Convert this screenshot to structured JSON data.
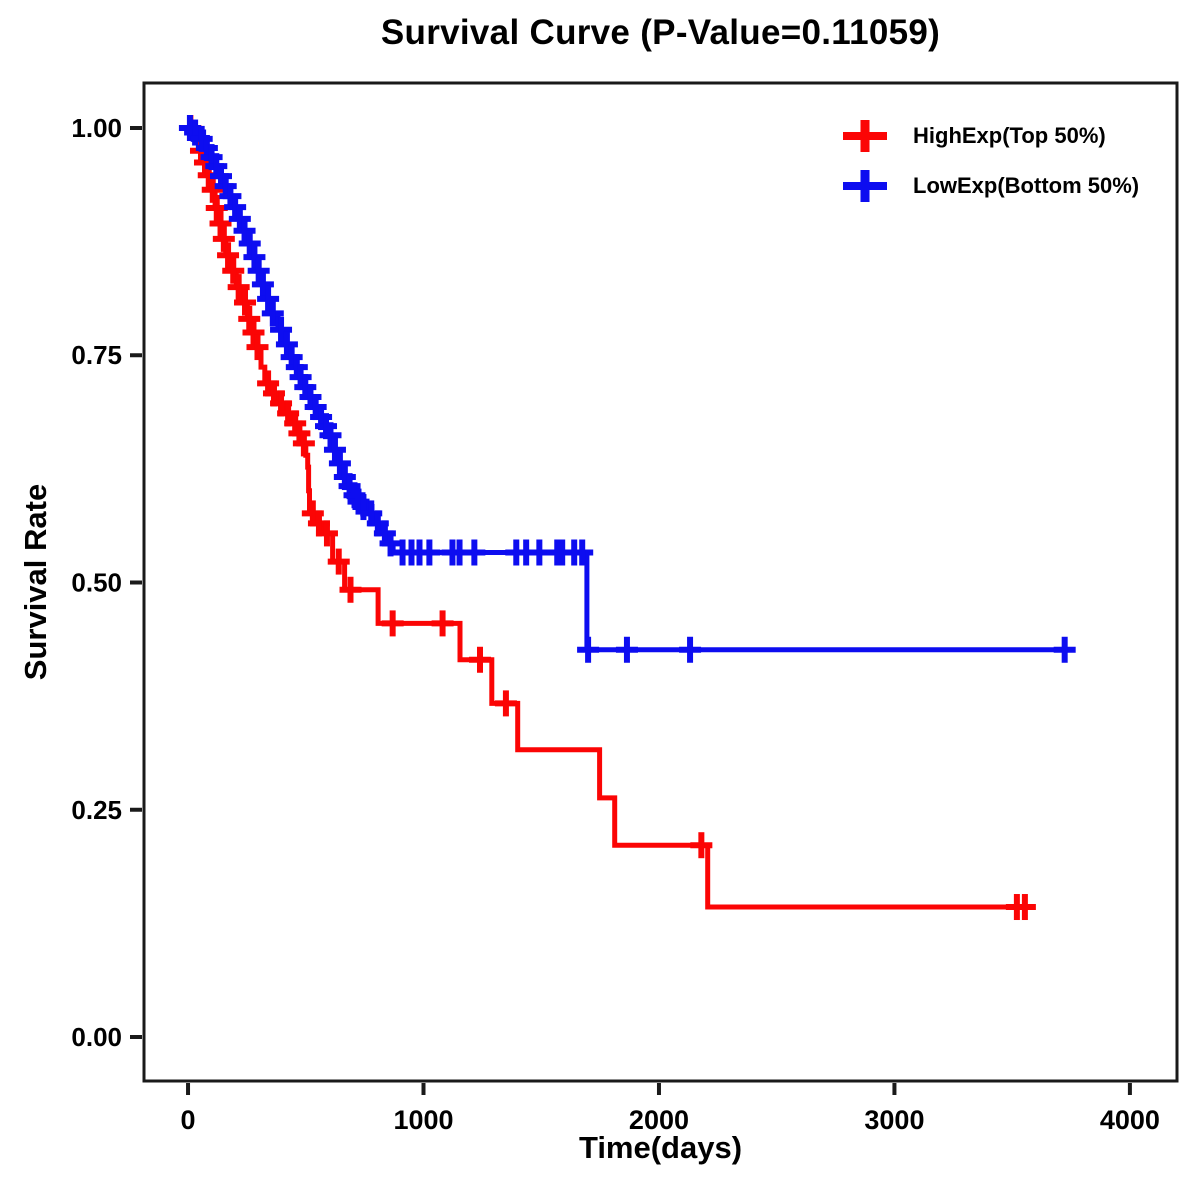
{
  "title": "Survival Curve (P-Value=0.11059)",
  "axes": {
    "x": {
      "label": "Time(days)",
      "tick_labels": [
        "0",
        "1000",
        "2000",
        "3000",
        "4000"
      ],
      "tick_values": [
        0,
        1000,
        2000,
        3000,
        4000
      ]
    },
    "y": {
      "label": "Survival Rate",
      "tick_labels": [
        "0.00",
        "0.25",
        "0.50",
        "0.75",
        "1.00"
      ],
      "tick_values": [
        0,
        0.25,
        0.5,
        0.75,
        1
      ]
    }
  },
  "colors": {
    "high": "#fb0505",
    "low": "#0d0df0",
    "axis": "#1a1a1a",
    "text": "#000000",
    "background": "#ffffff"
  },
  "legend": [
    {
      "label": "HighExp(Top 50%)",
      "color": "#fb0505"
    },
    {
      "label": "LowExp(Bottom 50%)",
      "color": "#0d0df0"
    }
  ],
  "chart_data": {
    "type": "line",
    "subtype": "kaplan-meier-step",
    "title": "Survival Curve (P-Value=0.11059)",
    "xlabel": "Time(days)",
    "ylabel": "Survival Rate",
    "xlim": [
      -187,
      4200
    ],
    "ylim": [
      -0.0484,
      1.0495
    ],
    "grid": false,
    "legend_position": "top-right-inside",
    "series": [
      {
        "name": "HighExp(Top 50%)",
        "color": "#fb0505",
        "end_time": 3575,
        "steps": [
          [
            0,
            1.0
          ],
          [
            18,
            0.993
          ],
          [
            35,
            0.985
          ],
          [
            50,
            0.975
          ],
          [
            65,
            0.962
          ],
          [
            80,
            0.948
          ],
          [
            95,
            0.932
          ],
          [
            115,
            0.912
          ],
          [
            130,
            0.895
          ],
          [
            145,
            0.878
          ],
          [
            160,
            0.86
          ],
          [
            180,
            0.843
          ],
          [
            205,
            0.825
          ],
          [
            230,
            0.808
          ],
          [
            252,
            0.79
          ],
          [
            270,
            0.775
          ],
          [
            285,
            0.759
          ],
          [
            310,
            0.737
          ],
          [
            326,
            0.719
          ],
          [
            355,
            0.708
          ],
          [
            377,
            0.697
          ],
          [
            410,
            0.686
          ],
          [
            445,
            0.675
          ],
          [
            465,
            0.664
          ],
          [
            483,
            0.653
          ],
          [
            500,
            0.64
          ],
          [
            508,
            0.627
          ],
          [
            512,
            0.601
          ],
          [
            516,
            0.576
          ],
          [
            545,
            0.565
          ],
          [
            568,
            0.554
          ],
          [
            614,
            0.523
          ],
          [
            665,
            0.492
          ],
          [
            807,
            0.455
          ],
          [
            1155,
            0.415
          ],
          [
            1290,
            0.367
          ],
          [
            1400,
            0.316
          ],
          [
            1748,
            0.263
          ],
          [
            1812,
            0.211
          ],
          [
            2207,
            0.143
          ]
        ],
        "censors": [
          [
            10,
            1.0
          ],
          [
            55,
            0.975
          ],
          [
            72,
            0.962
          ],
          [
            88,
            0.948
          ],
          [
            105,
            0.932
          ],
          [
            122,
            0.912
          ],
          [
            138,
            0.895
          ],
          [
            152,
            0.878
          ],
          [
            170,
            0.86
          ],
          [
            192,
            0.843
          ],
          [
            215,
            0.825
          ],
          [
            242,
            0.808
          ],
          [
            260,
            0.79
          ],
          [
            278,
            0.775
          ],
          [
            295,
            0.759
          ],
          [
            340,
            0.719
          ],
          [
            365,
            0.708
          ],
          [
            395,
            0.697
          ],
          [
            425,
            0.686
          ],
          [
            455,
            0.675
          ],
          [
            473,
            0.664
          ],
          [
            492,
            0.653
          ],
          [
            530,
            0.576
          ],
          [
            556,
            0.565
          ],
          [
            590,
            0.554
          ],
          [
            640,
            0.523
          ],
          [
            690,
            0.492
          ],
          [
            869,
            0.455
          ],
          [
            1081,
            0.455
          ],
          [
            1240,
            0.415
          ],
          [
            1350,
            0.367
          ],
          [
            2180,
            0.211
          ],
          [
            3520,
            0.143
          ],
          [
            3554,
            0.143
          ]
        ]
      },
      {
        "name": "LowExp(Bottom 50%)",
        "color": "#0d0df0",
        "end_time": 3760,
        "steps": [
          [
            0,
            1.0
          ],
          [
            25,
            0.995
          ],
          [
            48,
            0.988
          ],
          [
            70,
            0.978
          ],
          [
            90,
            0.968
          ],
          [
            110,
            0.958
          ],
          [
            130,
            0.947
          ],
          [
            150,
            0.936
          ],
          [
            170,
            0.925
          ],
          [
            190,
            0.913
          ],
          [
            210,
            0.9
          ],
          [
            230,
            0.887
          ],
          [
            250,
            0.873
          ],
          [
            270,
            0.858
          ],
          [
            290,
            0.843
          ],
          [
            310,
            0.828
          ],
          [
            330,
            0.812
          ],
          [
            350,
            0.796
          ],
          [
            382,
            0.778
          ],
          [
            408,
            0.762
          ],
          [
            430,
            0.748
          ],
          [
            455,
            0.737
          ],
          [
            468,
            0.726
          ],
          [
            490,
            0.715
          ],
          [
            508,
            0.704
          ],
          [
            532,
            0.693
          ],
          [
            552,
            0.682
          ],
          [
            576,
            0.672
          ],
          [
            595,
            0.662
          ],
          [
            614,
            0.646
          ],
          [
            633,
            0.631
          ],
          [
            654,
            0.616
          ],
          [
            676,
            0.606
          ],
          [
            697,
            0.596
          ],
          [
            717,
            0.589
          ],
          [
            731,
            0.583
          ],
          [
            762,
            0.576
          ],
          [
            792,
            0.565
          ],
          [
            822,
            0.554
          ],
          [
            852,
            0.543
          ],
          [
            871,
            0.533
          ],
          [
            1694,
            0.426
          ]
        ],
        "censors": [
          [
            8,
            1.0
          ],
          [
            30,
            0.995
          ],
          [
            58,
            0.988
          ],
          [
            80,
            0.978
          ],
          [
            100,
            0.968
          ],
          [
            120,
            0.958
          ],
          [
            140,
            0.947
          ],
          [
            160,
            0.936
          ],
          [
            180,
            0.925
          ],
          [
            200,
            0.913
          ],
          [
            220,
            0.9
          ],
          [
            240,
            0.887
          ],
          [
            262,
            0.873
          ],
          [
            282,
            0.858
          ],
          [
            300,
            0.843
          ],
          [
            318,
            0.828
          ],
          [
            340,
            0.812
          ],
          [
            360,
            0.796
          ],
          [
            395,
            0.778
          ],
          [
            420,
            0.762
          ],
          [
            440,
            0.748
          ],
          [
            462,
            0.737
          ],
          [
            478,
            0.726
          ],
          [
            498,
            0.715
          ],
          [
            520,
            0.704
          ],
          [
            542,
            0.693
          ],
          [
            565,
            0.682
          ],
          [
            586,
            0.672
          ],
          [
            605,
            0.662
          ],
          [
            624,
            0.646
          ],
          [
            645,
            0.631
          ],
          [
            666,
            0.616
          ],
          [
            686,
            0.606
          ],
          [
            707,
            0.596
          ],
          [
            724,
            0.589
          ],
          [
            745,
            0.583
          ],
          [
            778,
            0.576
          ],
          [
            806,
            0.565
          ],
          [
            836,
            0.554
          ],
          [
            860,
            0.543
          ],
          [
            911,
            0.533
          ],
          [
            949,
            0.533
          ],
          [
            983,
            0.533
          ],
          [
            1025,
            0.533
          ],
          [
            1123,
            0.533
          ],
          [
            1153,
            0.533
          ],
          [
            1216,
            0.533
          ],
          [
            1394,
            0.533
          ],
          [
            1436,
            0.533
          ],
          [
            1492,
            0.533
          ],
          [
            1568,
            0.533
          ],
          [
            1589,
            0.533
          ],
          [
            1640,
            0.533
          ],
          [
            1674,
            0.533
          ],
          [
            1699,
            0.426
          ],
          [
            1864,
            0.426
          ],
          [
            2132,
            0.426
          ],
          [
            3723,
            0.426
          ]
        ]
      }
    ]
  }
}
